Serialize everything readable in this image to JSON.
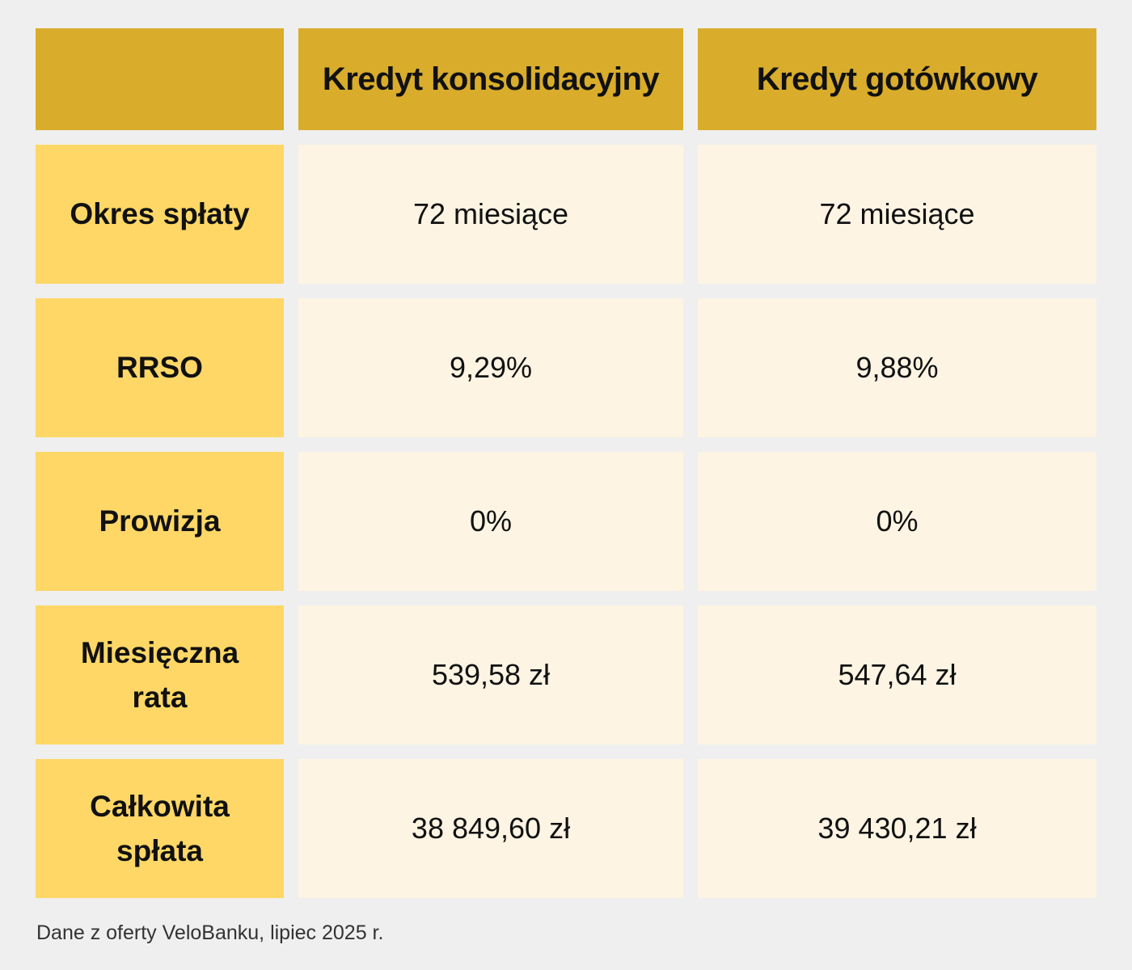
{
  "table": {
    "headers": {
      "corner": "",
      "col_a": "Kredyt konsolidacyjny",
      "col_b": "Kredyt gotówkowy"
    },
    "rows": [
      {
        "label": "Okres spłaty",
        "col_a": "72 miesiące",
        "col_b": "72 miesiące"
      },
      {
        "label": "RRSO",
        "col_a": "9,29%",
        "col_b": "9,88%"
      },
      {
        "label": "Prowizja",
        "col_a": "0%",
        "col_b": "0%"
      },
      {
        "label": "Miesięczna rata",
        "col_a": "539,58 zł",
        "col_b": "547,64 zł"
      },
      {
        "label": "Całkowita spłata",
        "col_a": "38 849,60 zł",
        "col_b": "39 430,21 zł"
      }
    ]
  },
  "footnote": "Dane z oferty VeloBanku, lipiec 2025 r.",
  "colors": {
    "header": "#d9ad2b",
    "label": "#fed766",
    "value": "#fdf4e3",
    "background": "#efefef"
  }
}
